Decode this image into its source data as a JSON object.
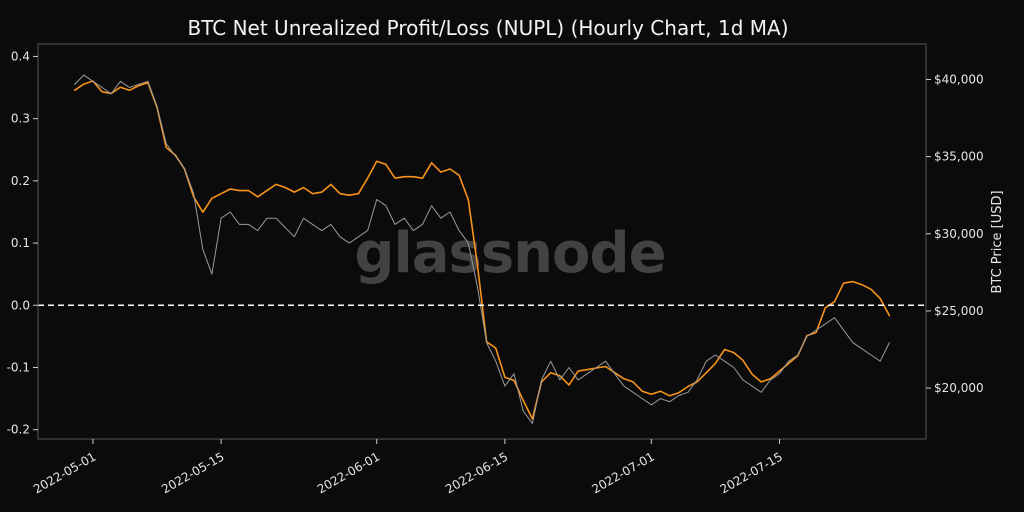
{
  "chart_data": {
    "type": "line",
    "title": "BTC Net Unrealized Profit/Loss (NUPL) (Hourly Chart, 1d MA)",
    "y_right_label": "BTC Price [USD]",
    "watermark": "glassnode",
    "x_ticks": [
      "2022-05-01",
      "2022-05-15",
      "2022-06-01",
      "2022-06-15",
      "2022-07-01",
      "2022-07-15"
    ],
    "y_left_ticks": [
      "0.4",
      "0.3",
      "0.2",
      "0.1",
      "0.0",
      "-0.1",
      "-0.2"
    ],
    "y_left_tick_values": [
      0.4,
      0.3,
      0.2,
      0.1,
      0.0,
      -0.1,
      -0.2
    ],
    "y_right_ticks": [
      "$40,000",
      "$35,000",
      "$30,000",
      "$25,000",
      "$20,000"
    ],
    "y_right_tick_values": [
      40000,
      35000,
      30000,
      25000,
      20000
    ],
    "y_left_lim": [
      -0.215,
      0.42
    ],
    "y_right_lim": [
      16700,
      42300
    ],
    "x_lim": [
      "2022-04-25",
      "2022-07-31"
    ],
    "reference_line": {
      "y": 0.0,
      "style": "dashed"
    },
    "colors": {
      "price": "#f7931a",
      "nupl": "#9a9a9a",
      "reference": "#ffffff",
      "background": "#0b0b0b",
      "frame": "#555555"
    },
    "series": [
      {
        "name": "",
        "axis": "right",
        "color": "#f7931a",
        "x": [
          "2022-04-29",
          "2022-04-30",
          "2022-05-01",
          "2022-05-02",
          "2022-05-03",
          "2022-05-04",
          "2022-05-05",
          "2022-05-06",
          "2022-05-07",
          "2022-05-08",
          "2022-05-09",
          "2022-05-10",
          "2022-05-11",
          "2022-05-12",
          "2022-05-13",
          "2022-05-14",
          "2022-05-15",
          "2022-05-16",
          "2022-05-17",
          "2022-05-18",
          "2022-05-19",
          "2022-05-20",
          "2022-05-21",
          "2022-05-22",
          "2022-05-23",
          "2022-05-24",
          "2022-05-25",
          "2022-05-26",
          "2022-05-27",
          "2022-05-28",
          "2022-05-29",
          "2022-05-30",
          "2022-05-31",
          "2022-06-01",
          "2022-06-02",
          "2022-06-03",
          "2022-06-04",
          "2022-06-05",
          "2022-06-06",
          "2022-06-07",
          "2022-06-08",
          "2022-06-09",
          "2022-06-10",
          "2022-06-11",
          "2022-06-12",
          "2022-06-13",
          "2022-06-14",
          "2022-06-15",
          "2022-06-16",
          "2022-06-17",
          "2022-06-18",
          "2022-06-19",
          "2022-06-20",
          "2022-06-21",
          "2022-06-22",
          "2022-06-23",
          "2022-06-24",
          "2022-06-25",
          "2022-06-26",
          "2022-06-27",
          "2022-06-28",
          "2022-06-29",
          "2022-06-30",
          "2022-07-01",
          "2022-07-02",
          "2022-07-03",
          "2022-07-04",
          "2022-07-05",
          "2022-07-06",
          "2022-07-07",
          "2022-07-08",
          "2022-07-09",
          "2022-07-10",
          "2022-07-11",
          "2022-07-12",
          "2022-07-13",
          "2022-07-14",
          "2022-07-15",
          "2022-07-16",
          "2022-07-17",
          "2022-07-18",
          "2022-07-19",
          "2022-07-20",
          "2022-07-21",
          "2022-07-22",
          "2022-07-23",
          "2022-07-24",
          "2022-07-25",
          "2022-07-26",
          "2022-07-27"
        ],
        "values": [
          39300,
          39700,
          39900,
          39200,
          39100,
          39500,
          39300,
          39600,
          39800,
          38200,
          35600,
          35100,
          34200,
          32400,
          31400,
          32300,
          32600,
          32900,
          32800,
          32800,
          32400,
          32800,
          33200,
          33000,
          32700,
          33000,
          32600,
          32700,
          33200,
          32600,
          32500,
          32600,
          33600,
          34700,
          34500,
          33600,
          33700,
          33700,
          33600,
          34600,
          34000,
          34200,
          33800,
          32200,
          28000,
          23000,
          22600,
          20700,
          20500,
          19200,
          18000,
          20400,
          21000,
          20800,
          20200,
          21100,
          21200,
          21300,
          21400,
          21000,
          20600,
          20400,
          19800,
          19600,
          19800,
          19500,
          19700,
          20100,
          20400,
          21000,
          21600,
          22500,
          22300,
          21800,
          20900,
          20400,
          20600,
          21100,
          21600,
          22100,
          23400,
          23600,
          25200,
          25600,
          26800,
          26900,
          26700,
          26400,
          25800,
          24700
        ]
      },
      {
        "name": "",
        "axis": "left",
        "color": "#9a9a9a",
        "x": [
          "2022-04-29",
          "2022-04-30",
          "2022-05-01",
          "2022-05-02",
          "2022-05-03",
          "2022-05-04",
          "2022-05-05",
          "2022-05-06",
          "2022-05-07",
          "2022-05-08",
          "2022-05-09",
          "2022-05-10",
          "2022-05-11",
          "2022-05-12",
          "2022-05-13",
          "2022-05-14",
          "2022-05-15",
          "2022-05-16",
          "2022-05-17",
          "2022-05-18",
          "2022-05-19",
          "2022-05-20",
          "2022-05-21",
          "2022-05-22",
          "2022-05-23",
          "2022-05-24",
          "2022-05-25",
          "2022-05-26",
          "2022-05-27",
          "2022-05-28",
          "2022-05-29",
          "2022-05-30",
          "2022-05-31",
          "2022-06-01",
          "2022-06-02",
          "2022-06-03",
          "2022-06-04",
          "2022-06-05",
          "2022-06-06",
          "2022-06-07",
          "2022-06-08",
          "2022-06-09",
          "2022-06-10",
          "2022-06-11",
          "2022-06-12",
          "2022-06-13",
          "2022-06-14",
          "2022-06-15",
          "2022-06-16",
          "2022-06-17",
          "2022-06-18",
          "2022-06-19",
          "2022-06-20",
          "2022-06-21",
          "2022-06-22",
          "2022-06-23",
          "2022-06-24",
          "2022-06-25",
          "2022-06-26",
          "2022-06-27",
          "2022-06-28",
          "2022-06-29",
          "2022-06-30",
          "2022-07-01",
          "2022-07-02",
          "2022-07-03",
          "2022-07-04",
          "2022-07-05",
          "2022-07-06",
          "2022-07-07",
          "2022-07-08",
          "2022-07-09",
          "2022-07-10",
          "2022-07-11",
          "2022-07-12",
          "2022-07-13",
          "2022-07-14",
          "2022-07-15",
          "2022-07-16",
          "2022-07-17",
          "2022-07-18",
          "2022-07-19",
          "2022-07-20",
          "2022-07-21",
          "2022-07-22",
          "2022-07-23",
          "2022-07-24",
          "2022-07-25",
          "2022-07-26",
          "2022-07-27"
        ],
        "values": [
          0.355,
          0.37,
          0.36,
          0.35,
          0.34,
          0.36,
          0.35,
          0.355,
          0.36,
          0.32,
          0.26,
          0.24,
          0.22,
          0.18,
          0.09,
          0.05,
          0.14,
          0.15,
          0.13,
          0.13,
          0.12,
          0.14,
          0.14,
          0.125,
          0.11,
          0.14,
          0.13,
          0.12,
          0.13,
          0.11,
          0.1,
          0.11,
          0.12,
          0.17,
          0.16,
          0.13,
          0.14,
          0.12,
          0.13,
          0.16,
          0.14,
          0.15,
          0.12,
          0.1,
          0.03,
          -0.06,
          -0.09,
          -0.13,
          -0.11,
          -0.17,
          -0.19,
          -0.12,
          -0.09,
          -0.12,
          -0.1,
          -0.12,
          -0.11,
          -0.1,
          -0.09,
          -0.11,
          -0.13,
          -0.14,
          -0.15,
          -0.16,
          -0.15,
          -0.155,
          -0.145,
          -0.14,
          -0.12,
          -0.09,
          -0.08,
          -0.09,
          -0.1,
          -0.12,
          -0.13,
          -0.14,
          -0.12,
          -0.11,
          -0.09,
          -0.08,
          -0.05,
          -0.04,
          -0.03,
          -0.02,
          -0.04,
          -0.06,
          -0.07,
          -0.08,
          -0.09,
          -0.06
        ]
      }
    ]
  }
}
